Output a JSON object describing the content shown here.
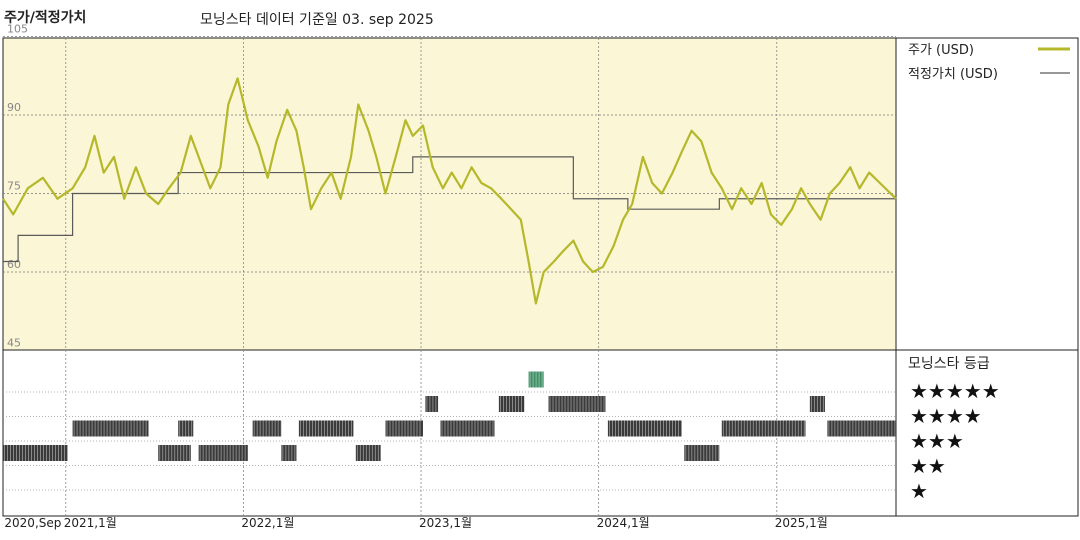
{
  "header": {
    "title": "주가/적정가치",
    "subtitle": "모닝스타 데이터 기준일 03. sep 2025"
  },
  "legend": {
    "price_label": "주가 (USD)",
    "fair_value_label": "적정가치 (USD)",
    "rating_title": "모닝스타 등급",
    "stars": [
      "★★★★★",
      "★★★★",
      "★★★",
      "★★",
      "★"
    ]
  },
  "colors": {
    "price": "#b5b82a",
    "fair_value": "#5a5a5a",
    "upper_bg": "#fbf6d5",
    "rating_bar": "#3a3a3a",
    "rating_highlight": "#3f8f66"
  },
  "chart_data": {
    "type": "line",
    "y_ticks": [
      105,
      90,
      75,
      60,
      45
    ],
    "ylim": [
      45,
      110
    ],
    "x_start": "2020-08-25",
    "x_end": "2025-09-03",
    "x_tick_labels": [
      {
        "date": "2020-09-01",
        "label": "2020,Sep"
      },
      {
        "date": "2021-01-01",
        "label": "2021,1월"
      },
      {
        "date": "2022-01-01",
        "label": "2022,1월"
      },
      {
        "date": "2023-01-01",
        "label": "2023,1월"
      },
      {
        "date": "2024-01-01",
        "label": "2024,1월"
      },
      {
        "date": "2025-01-01",
        "label": "2025,1월"
      }
    ],
    "series": [
      {
        "name": "주가 (USD)",
        "points": [
          [
            "2020-08-25",
            74
          ],
          [
            "2020-09-15",
            71
          ],
          [
            "2020-10-15",
            76
          ],
          [
            "2020-11-15",
            78
          ],
          [
            "2020-12-15",
            74
          ],
          [
            "2021-01-15",
            76
          ],
          [
            "2021-02-10",
            80
          ],
          [
            "2021-03-01",
            86
          ],
          [
            "2021-03-20",
            79
          ],
          [
            "2021-04-10",
            82
          ],
          [
            "2021-05-01",
            74
          ],
          [
            "2021-05-25",
            80
          ],
          [
            "2021-06-15",
            75
          ],
          [
            "2021-07-10",
            73
          ],
          [
            "2021-08-01",
            76
          ],
          [
            "2021-08-25",
            79
          ],
          [
            "2021-09-15",
            86
          ],
          [
            "2021-10-05",
            81
          ],
          [
            "2021-10-25",
            76
          ],
          [
            "2021-11-15",
            80
          ],
          [
            "2021-12-01",
            92
          ],
          [
            "2021-12-20",
            97
          ],
          [
            "2022-01-10",
            89
          ],
          [
            "2022-02-01",
            84
          ],
          [
            "2022-02-20",
            78
          ],
          [
            "2022-03-10",
            85
          ],
          [
            "2022-04-01",
            91
          ],
          [
            "2022-04-20",
            87
          ],
          [
            "2022-05-05",
            80
          ],
          [
            "2022-05-20",
            72
          ],
          [
            "2022-06-10",
            76
          ],
          [
            "2022-07-01",
            79
          ],
          [
            "2022-07-20",
            74
          ],
          [
            "2022-08-10",
            82
          ],
          [
            "2022-08-25",
            92
          ],
          [
            "2022-09-15",
            87
          ],
          [
            "2022-10-01",
            82
          ],
          [
            "2022-10-20",
            75
          ],
          [
            "2022-11-10",
            82
          ],
          [
            "2022-11-30",
            89
          ],
          [
            "2022-12-15",
            86
          ],
          [
            "2023-01-05",
            88
          ],
          [
            "2023-01-25",
            80
          ],
          [
            "2023-02-15",
            76
          ],
          [
            "2023-03-05",
            79
          ],
          [
            "2023-03-25",
            76
          ],
          [
            "2023-04-15",
            80
          ],
          [
            "2023-05-05",
            77
          ],
          [
            "2023-05-25",
            76
          ],
          [
            "2023-06-15",
            74
          ],
          [
            "2023-07-05",
            72
          ],
          [
            "2023-07-25",
            70
          ],
          [
            "2023-08-10",
            62
          ],
          [
            "2023-08-25",
            54
          ],
          [
            "2023-09-10",
            60
          ],
          [
            "2023-10-01",
            62
          ],
          [
            "2023-10-20",
            64
          ],
          [
            "2023-11-10",
            66
          ],
          [
            "2023-11-30",
            62
          ],
          [
            "2023-12-20",
            60
          ],
          [
            "2024-01-10",
            61
          ],
          [
            "2024-02-01",
            65
          ],
          [
            "2024-02-20",
            70
          ],
          [
            "2024-03-10",
            73
          ],
          [
            "2024-04-01",
            82
          ],
          [
            "2024-04-20",
            77
          ],
          [
            "2024-05-10",
            75
          ],
          [
            "2024-06-01",
            79
          ],
          [
            "2024-06-20",
            83
          ],
          [
            "2024-07-10",
            87
          ],
          [
            "2024-07-30",
            85
          ],
          [
            "2024-08-20",
            79
          ],
          [
            "2024-09-10",
            76
          ],
          [
            "2024-10-01",
            72
          ],
          [
            "2024-10-20",
            76
          ],
          [
            "2024-11-10",
            73
          ],
          [
            "2024-12-01",
            77
          ],
          [
            "2024-12-20",
            71
          ],
          [
            "2025-01-10",
            69
          ],
          [
            "2025-02-01",
            72
          ],
          [
            "2025-02-20",
            76
          ],
          [
            "2025-03-10",
            73
          ],
          [
            "2025-04-01",
            70
          ],
          [
            "2025-04-20",
            75
          ],
          [
            "2025-05-10",
            77
          ],
          [
            "2025-06-01",
            80
          ],
          [
            "2025-06-20",
            76
          ],
          [
            "2025-07-10",
            79
          ],
          [
            "2025-08-01",
            77
          ],
          [
            "2025-09-03",
            74
          ]
        ]
      },
      {
        "name": "적정가치 (USD)",
        "steps": [
          [
            "2020-08-25",
            62
          ],
          [
            "2020-09-25",
            67
          ],
          [
            "2021-01-15",
            75
          ],
          [
            "2021-08-20",
            79
          ],
          [
            "2022-12-15",
            82
          ],
          [
            "2023-11-10",
            74
          ],
          [
            "2024-03-01",
            72
          ],
          [
            "2024-09-05",
            74
          ],
          [
            "2025-09-03",
            74
          ]
        ]
      }
    ],
    "ratings": [
      {
        "start": "2020-08-25",
        "end": "2021-01-05",
        "stars": 2
      },
      {
        "start": "2021-01-15",
        "end": "2021-06-20",
        "stars": 3
      },
      {
        "start": "2021-07-10",
        "end": "2021-09-15",
        "stars": 2
      },
      {
        "start": "2021-08-20",
        "end": "2021-09-20",
        "stars": 3
      },
      {
        "start": "2021-10-01",
        "end": "2022-01-10",
        "stars": 2
      },
      {
        "start": "2022-01-20",
        "end": "2022-03-20",
        "stars": 3
      },
      {
        "start": "2022-03-20",
        "end": "2022-04-20",
        "stars": 2
      },
      {
        "start": "2022-04-25",
        "end": "2022-08-15",
        "stars": 3
      },
      {
        "start": "2022-08-20",
        "end": "2022-10-10",
        "stars": 2
      },
      {
        "start": "2022-10-20",
        "end": "2023-01-05",
        "stars": 3
      },
      {
        "start": "2023-01-10",
        "end": "2023-02-05",
        "stars": 4
      },
      {
        "start": "2023-02-10",
        "end": "2023-06-01",
        "stars": 3
      },
      {
        "start": "2023-06-10",
        "end": "2023-08-01",
        "stars": 4
      },
      {
        "start": "2023-08-10",
        "end": "2023-09-10",
        "stars": 5
      },
      {
        "start": "2023-09-20",
        "end": "2024-01-15",
        "stars": 4
      },
      {
        "start": "2024-01-20",
        "end": "2024-06-20",
        "stars": 3
      },
      {
        "start": "2024-06-25",
        "end": "2024-09-05",
        "stars": 2
      },
      {
        "start": "2024-09-10",
        "end": "2025-03-01",
        "stars": 3
      },
      {
        "start": "2025-03-10",
        "end": "2025-04-10",
        "stars": 4
      },
      {
        "start": "2025-04-15",
        "end": "2025-09-03",
        "stars": 3
      }
    ]
  }
}
